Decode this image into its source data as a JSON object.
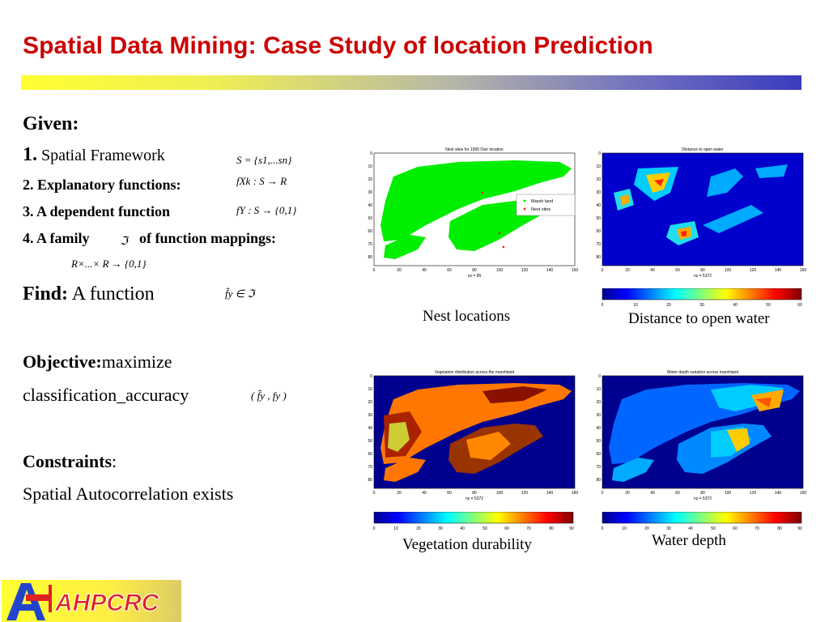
{
  "slide": {
    "title": "Spatial Data Mining: Case Study of location Prediction",
    "given_label": "Given:",
    "item1_num": "1.",
    "item1_text": " Spatial Framework",
    "item2": "2. Explanatory functions:",
    "item3": "3. A dependent function",
    "item4a": "4. A family",
    "item4b": "of function mappings:",
    "find_label": "Find:",
    "find_text": " A function",
    "objective_label": "Objective:",
    "objective_text": "maximize",
    "objective_line2": "classification_accuracy",
    "constraints_label": "Constraints",
    "constraints_colon": ":",
    "constraints_text": "Spatial Autocorrelation exists"
  },
  "formulas": {
    "spatial_framework": "S = {s1,...sn}",
    "explanatory": "fXk : S → R",
    "dependent": "fY : S → {0,1}",
    "family_symbol": "ℑ",
    "mapping": "R×...× R → {0,1}",
    "find": "f̂y ∈ ℑ",
    "accuracy": "( f̂y , fy )"
  },
  "panels": [
    {
      "plot_title": "Nest sites for 1995 Darr location",
      "nz_label": "nz = 85",
      "legend": [
        "Marsh land",
        "Nest sites"
      ],
      "caption": "Nest locations"
    },
    {
      "plot_title": "Distance to open water",
      "nz_label": "nz = 5372",
      "caption": "Distance to open water"
    },
    {
      "plot_title": "Vegetation distribution across the marshland",
      "nz_label": "nz = 5372",
      "caption": "Vegetation durability"
    },
    {
      "plot_title": "Water depth variation across marshland",
      "nz_label": "nz = 5372",
      "caption": "Water depth"
    }
  ],
  "axes": {
    "x_ticks": [
      "0",
      "20",
      "40",
      "60",
      "80",
      "100",
      "120",
      "140",
      "160"
    ],
    "y_ticks": [
      "0",
      "10",
      "20",
      "30",
      "40",
      "50",
      "60",
      "70",
      "80"
    ]
  },
  "colorbars": {
    "distance_ticks": [
      "0",
      "10",
      "20",
      "30",
      "40",
      "50",
      "60"
    ],
    "depth_ticks": [
      "0",
      "10",
      "20",
      "30",
      "40",
      "50",
      "60",
      "70",
      "80",
      "90"
    ]
  },
  "logo": {
    "text": "AHPCRC"
  },
  "colors": {
    "title": "#cc0000",
    "marsh": "#00ee00",
    "nest": "#ff3333",
    "background_blue": "#00008f"
  }
}
